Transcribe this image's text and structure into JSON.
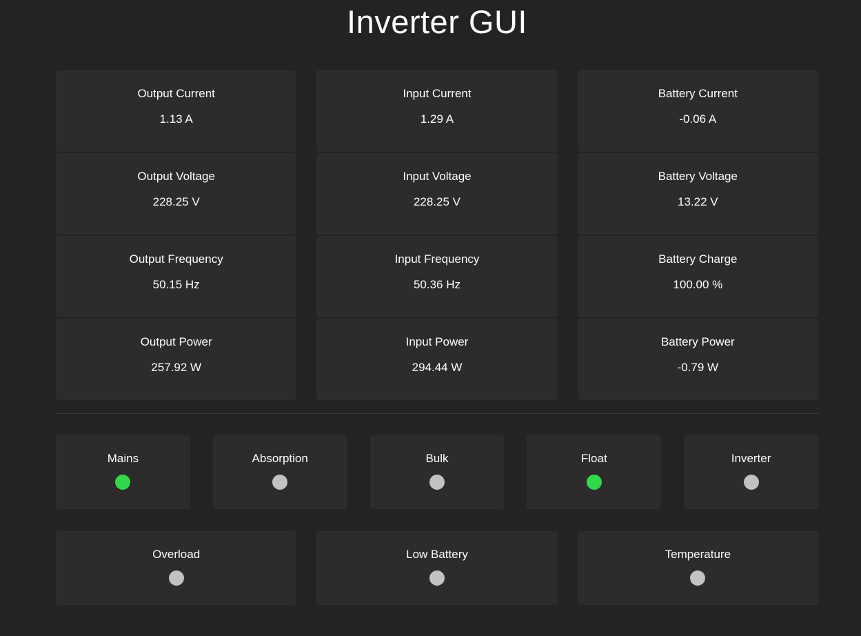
{
  "page": {
    "title": "Inverter GUI"
  },
  "theme": {
    "page_bg": "#242222",
    "card_bg": "#2d2b2b",
    "divider": "#3b3939",
    "text": "#ffffff",
    "led_on": "#32d74b",
    "led_off": "#c2c2c2"
  },
  "metrics": [
    {
      "label": "Output Current",
      "value": "1.13 A"
    },
    {
      "label": "Input Current",
      "value": "1.29 A"
    },
    {
      "label": "Battery Current",
      "value": "-0.06 A"
    },
    {
      "label": "Output Voltage",
      "value": "228.25 V"
    },
    {
      "label": "Input Voltage",
      "value": "228.25 V"
    },
    {
      "label": "Battery Voltage",
      "value": "13.22 V"
    },
    {
      "label": "Output Frequency",
      "value": "50.15 Hz"
    },
    {
      "label": "Input Frequency",
      "value": "50.36 Hz"
    },
    {
      "label": "Battery Charge",
      "value": "100.00 %"
    },
    {
      "label": "Output Power",
      "value": "257.92 W"
    },
    {
      "label": "Input Power",
      "value": "294.44 W"
    },
    {
      "label": "Battery Power",
      "value": "-0.79 W"
    }
  ],
  "status_row1": [
    {
      "label": "Mains",
      "on": true
    },
    {
      "label": "Absorption",
      "on": false
    },
    {
      "label": "Bulk",
      "on": false
    },
    {
      "label": "Float",
      "on": true
    },
    {
      "label": "Inverter",
      "on": false
    }
  ],
  "status_row2": [
    {
      "label": "Overload",
      "on": false
    },
    {
      "label": "Low Battery",
      "on": false
    },
    {
      "label": "Temperature",
      "on": false
    }
  ]
}
